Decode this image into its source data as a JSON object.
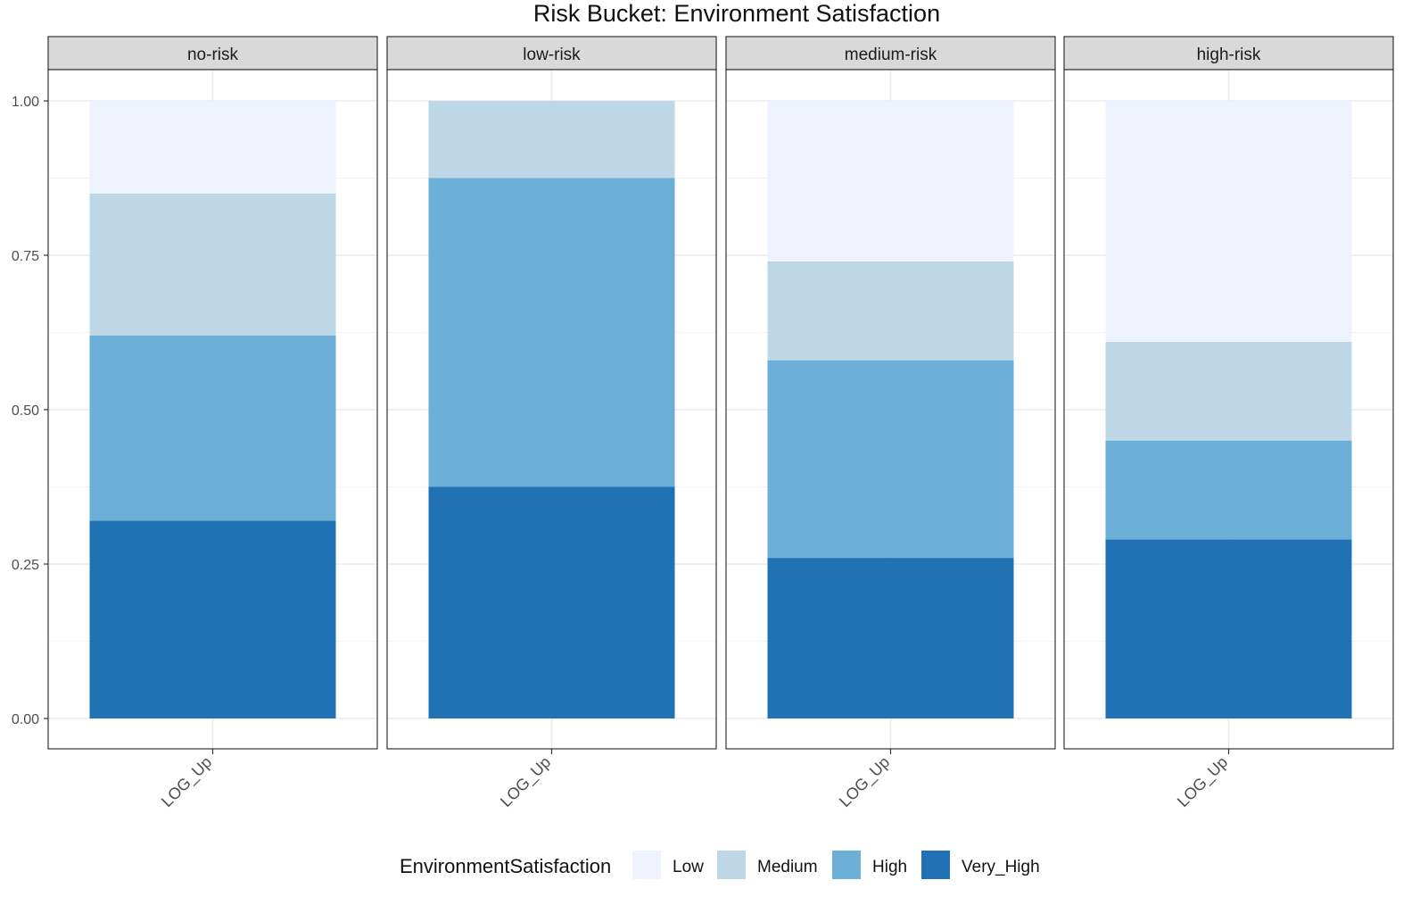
{
  "chart_data": {
    "type": "bar",
    "stacked": true,
    "title": "Risk Bucket: Environment Satisfaction",
    "xlabel": "",
    "ylabel": "",
    "ylim": [
      0,
      1
    ],
    "yticks": [
      "0.00",
      "0.25",
      "0.50",
      "0.75",
      "1.00"
    ],
    "ytick_values": [
      0,
      0.25,
      0.5,
      0.75,
      1.0
    ],
    "categories": [
      "LOG_Up"
    ],
    "facets": [
      {
        "label": "no-risk",
        "category": "LOG_Up",
        "series": [
          {
            "name": "Very_High",
            "value": 0.32
          },
          {
            "name": "High",
            "value": 0.3
          },
          {
            "name": "Medium",
            "value": 0.23
          },
          {
            "name": "Low",
            "value": 0.15
          }
        ]
      },
      {
        "label": "low-risk",
        "category": "LOG_Up",
        "series": [
          {
            "name": "Very_High",
            "value": 0.375
          },
          {
            "name": "High",
            "value": 0.5
          },
          {
            "name": "Medium",
            "value": 0.125
          },
          {
            "name": "Low",
            "value": 0.0
          }
        ]
      },
      {
        "label": "medium-risk",
        "category": "LOG_Up",
        "series": [
          {
            "name": "Very_High",
            "value": 0.26
          },
          {
            "name": "High",
            "value": 0.32
          },
          {
            "name": "Medium",
            "value": 0.16
          },
          {
            "name": "Low",
            "value": 0.26
          }
        ]
      },
      {
        "label": "high-risk",
        "category": "LOG_Up",
        "series": [
          {
            "name": "Very_High",
            "value": 0.29
          },
          {
            "name": "High",
            "value": 0.16
          },
          {
            "name": "Medium",
            "value": 0.16
          },
          {
            "name": "Low",
            "value": 0.39
          }
        ]
      }
    ],
    "legend": {
      "title": "EnvironmentSatisfaction",
      "position": "bottom",
      "items": [
        {
          "name": "Low",
          "color": "#eff3ff"
        },
        {
          "name": "Medium",
          "color": "#bdd7e7"
        },
        {
          "name": "High",
          "color": "#6baed6"
        },
        {
          "name": "Very_High",
          "color": "#2171b5"
        }
      ]
    }
  }
}
